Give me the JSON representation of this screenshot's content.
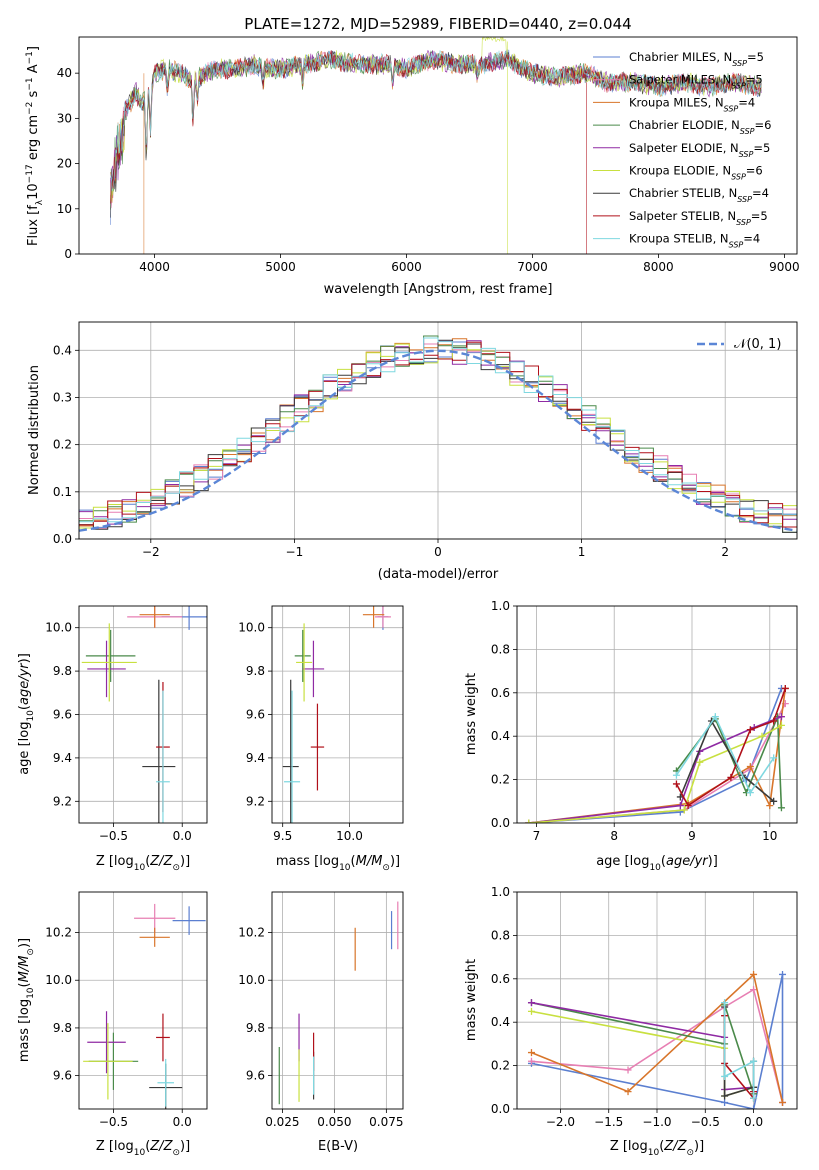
{
  "figure": {
    "title": "PLATE=1272, MJD=52989, FIBERID=0440, z=0.044"
  },
  "colors": {
    "chabrier_miles": "#5b7fd0",
    "salpeter_miles": "#e77fb3",
    "kroupa_miles": "#d8752a",
    "chabrier_elodie": "#4a8a4a",
    "salpeter_elodie": "#8f2aa3",
    "kroupa_elodie": "#c8e040",
    "chabrier_stelib": "#3a3a3a",
    "salpeter_stelib": "#b0101a",
    "kroupa_stelib": "#7fd8e0",
    "normal_curve": "#5b86d6",
    "grid": "#b0b0b0"
  },
  "chart_data": [
    {
      "id": "spectrum",
      "type": "line",
      "title": "PLATE=1272, MJD=52989, FIBERID=0440, z=0.044",
      "xlabel": "wavelength [Angstrom, rest frame]",
      "ylabel": "Flux [f_λ10^-17 erg cm^-2 s^-1 A^-1]",
      "xlim": [
        3400,
        9100
      ],
      "ylim": [
        0,
        48
      ],
      "xticks": [
        "4000",
        "5000",
        "6000",
        "7000",
        "8000",
        "9000"
      ],
      "yticks": [
        "0",
        "10",
        "20",
        "30",
        "40"
      ],
      "grid": false,
      "legend_position": "top-right",
      "x": [
        3650,
        3700,
        3750,
        3800,
        3850,
        3900,
        3950,
        4000,
        4100,
        4200,
        4300,
        4400,
        4500,
        4600,
        4700,
        4800,
        4900,
        5000,
        5200,
        5400,
        5600,
        5800,
        6000,
        6200,
        6400,
        6600,
        6800,
        7000,
        7200,
        7400,
        7600,
        7800,
        8000,
        8200,
        8400,
        8600,
        8800
      ],
      "y": [
        18,
        27,
        31,
        33,
        36,
        33,
        35,
        40,
        41,
        40,
        38,
        40,
        41,
        41,
        41,
        42,
        41,
        41,
        42,
        43,
        42,
        42,
        41,
        43,
        42,
        42,
        43,
        40,
        39,
        40,
        38,
        38,
        37,
        38,
        37,
        38,
        37
      ],
      "series": [
        {
          "name": "Chabrier MILES, N_SSP=5"
        },
        {
          "name": "Salpeter MILES, N_SSP=5"
        },
        {
          "name": "Kroupa MILES, N_SSP=4"
        },
        {
          "name": "Chabrier ELODIE, N_SSP=6"
        },
        {
          "name": "Salpeter ELODIE, N_SSP=5"
        },
        {
          "name": "Kroupa ELODIE, N_SSP=6"
        },
        {
          "name": "Chabrier STELIB, N_SSP=4"
        },
        {
          "name": "Salpeter STELIB, N_SSP=5"
        },
        {
          "name": "Kroupa STELIB, N_SSP=4"
        }
      ]
    },
    {
      "id": "residuals",
      "type": "line",
      "xlabel": "(data-model)/error",
      "ylabel": "Normed distribution",
      "xlim": [
        -2.5,
        2.5
      ],
      "ylim": [
        0,
        0.46
      ],
      "xticks": [
        "−2",
        "−1",
        "0",
        "1",
        "2"
      ],
      "yticks": [
        "0.0",
        "0.1",
        "0.2",
        "0.3",
        "0.4"
      ],
      "grid": true,
      "legend": "𝒩(0, 1)",
      "legend_position": "top-right",
      "bin_width": 0.1
    },
    {
      "id": "age-z",
      "type": "scatter",
      "xlabel": "Z [log10(Z/Z⊙)]",
      "ylabel": "age [log10(age/yr)]",
      "xlim": [
        -0.75,
        0.18
      ],
      "ylim": [
        9.1,
        10.1
      ],
      "xticks": [
        "−0.5",
        "0.0"
      ],
      "yticks": [
        "9.2",
        "9.4",
        "9.6",
        "9.8",
        "10.0"
      ],
      "grid": true,
      "points": [
        {
          "x": 0.05,
          "y": 10.05,
          "xerr": 0.2,
          "yerr": 0.06
        },
        {
          "x": -0.2,
          "y": 10.05,
          "xerr": 0.2,
          "yerr": 0.05
        },
        {
          "x": -0.2,
          "y": 10.06,
          "xerr": 0.11,
          "yerr": 0.06
        },
        {
          "x": -0.52,
          "y": 9.87,
          "xerr": 0.18,
          "yerr": 0.12
        },
        {
          "x": -0.55,
          "y": 9.81,
          "xerr": 0.14,
          "yerr": 0.13
        },
        {
          "x": -0.53,
          "y": 9.84,
          "xerr": 0.2,
          "yerr": 0.18
        },
        {
          "x": -0.17,
          "y": 9.36,
          "xerr": 0.12,
          "yerr": 0.4
        },
        {
          "x": -0.14,
          "y": 9.45,
          "xerr": 0.05,
          "yerr": 0.3
        },
        {
          "x": -0.14,
          "y": 9.29,
          "xerr": 0.05,
          "yerr": 0.42
        }
      ]
    },
    {
      "id": "age-mass",
      "type": "scatter",
      "xlabel": "mass [log10(M/M⊙)]",
      "ylabel": "",
      "xlim": [
        9.42,
        10.4
      ],
      "ylim": [
        9.1,
        10.1
      ],
      "xticks": [
        "9.5",
        "10.0"
      ],
      "yticks": [
        "9.2",
        "9.4",
        "9.6",
        "9.8",
        "10.0"
      ],
      "grid": true,
      "points": [
        {
          "x": 10.25,
          "y": 10.05,
          "xerr": 0.04,
          "yerr": 0.06
        },
        {
          "x": 10.25,
          "y": 10.05,
          "xerr": 0.06,
          "yerr": 0.05
        },
        {
          "x": 10.18,
          "y": 10.06,
          "xerr": 0.08,
          "yerr": 0.06
        },
        {
          "x": 9.65,
          "y": 9.87,
          "xerr": 0.06,
          "yerr": 0.12
        },
        {
          "x": 9.73,
          "y": 9.81,
          "xerr": 0.08,
          "yerr": 0.13
        },
        {
          "x": 9.66,
          "y": 9.84,
          "xerr": 0.06,
          "yerr": 0.18
        },
        {
          "x": 9.56,
          "y": 9.36,
          "xerr": 0.06,
          "yerr": 0.4
        },
        {
          "x": 9.76,
          "y": 9.45,
          "xerr": 0.05,
          "yerr": 0.2
        },
        {
          "x": 9.57,
          "y": 9.29,
          "xerr": 0.06,
          "yerr": 0.42
        }
      ]
    },
    {
      "id": "weight-age",
      "type": "line",
      "xlabel": "age [log10(age/yr)]",
      "ylabel": "mass weight",
      "xlim": [
        6.75,
        10.35
      ],
      "ylim": [
        0,
        1.0
      ],
      "xticks": [
        "7",
        "8",
        "9",
        "10"
      ],
      "yticks": [
        "0.0",
        "0.2",
        "0.4",
        "0.6",
        "0.8",
        "1.0"
      ],
      "grid": true,
      "series": [
        {
          "x": [
            6.9,
            8.85,
            9.7,
            10.15
          ],
          "y": [
            0.0,
            0.05,
            0.2,
            0.62
          ]
        },
        {
          "x": [
            6.9,
            8.9,
            9.75,
            10.2
          ],
          "y": [
            0.0,
            0.06,
            0.25,
            0.55
          ]
        },
        {
          "x": [
            6.9,
            8.95,
            9.75,
            10.0,
            10.2
          ],
          "y": [
            0.0,
            0.09,
            0.26,
            0.08,
            0.62
          ]
        },
        {
          "x": [
            8.8,
            9.3,
            9.7,
            10.1,
            10.15
          ],
          "y": [
            0.24,
            0.48,
            0.14,
            0.49,
            0.07
          ]
        },
        {
          "x": [
            6.9,
            8.85,
            9.1,
            9.8,
            10.15
          ],
          "y": [
            0.0,
            0.08,
            0.33,
            0.44,
            0.49
          ]
        },
        {
          "x": [
            6.9,
            8.9,
            9.1,
            9.9,
            10.15
          ],
          "y": [
            0.0,
            0.06,
            0.28,
            0.4,
            0.45
          ]
        },
        {
          "x": [
            8.85,
            9.25,
            9.65,
            10.05
          ],
          "y": [
            0.12,
            0.47,
            0.22,
            0.1
          ]
        },
        {
          "x": [
            8.8,
            8.95,
            9.5,
            9.75,
            10.05,
            10.2
          ],
          "y": [
            0.18,
            0.08,
            0.21,
            0.43,
            0.47,
            0.62
          ]
        },
        {
          "x": [
            8.8,
            9.3,
            9.75,
            10.05
          ],
          "y": [
            0.22,
            0.49,
            0.14,
            0.3
          ]
        }
      ]
    },
    {
      "id": "mass-z",
      "type": "scatter",
      "xlabel": "Z [log10(Z/Z⊙)]",
      "ylabel": "mass [log10(M/M⊙)]",
      "xlim": [
        -0.75,
        0.18
      ],
      "ylim": [
        9.46,
        10.37
      ],
      "xticks": [
        "−0.5",
        "0.0"
      ],
      "yticks": [
        "9.6",
        "9.8",
        "10.0",
        "10.2"
      ],
      "grid": true,
      "points": [
        {
          "x": 0.05,
          "y": 10.25,
          "xerr": 0.12,
          "yerr": 0.06
        },
        {
          "x": -0.2,
          "y": 10.26,
          "xerr": 0.15,
          "yerr": 0.06
        },
        {
          "x": -0.2,
          "y": 10.18,
          "xerr": 0.11,
          "yerr": 0.04
        },
        {
          "x": -0.5,
          "y": 9.66,
          "xerr": 0.18,
          "yerr": 0.12
        },
        {
          "x": -0.55,
          "y": 9.74,
          "xerr": 0.14,
          "yerr": 0.13
        },
        {
          "x": -0.54,
          "y": 9.66,
          "xerr": 0.18,
          "yerr": 0.16
        },
        {
          "x": -0.12,
          "y": 9.55,
          "xerr": 0.12,
          "yerr": 0.1
        },
        {
          "x": -0.14,
          "y": 9.76,
          "xerr": 0.05,
          "yerr": 0.1
        },
        {
          "x": -0.12,
          "y": 9.57,
          "xerr": 0.06,
          "yerr": 0.1
        }
      ]
    },
    {
      "id": "mass-ebv",
      "type": "scatter",
      "xlabel": "E(B-V)",
      "ylabel": "",
      "xlim": [
        0.02,
        0.083
      ],
      "ylim": [
        9.46,
        10.37
      ],
      "xticks": [
        "0.025",
        "0.050",
        "0.075"
      ],
      "yticks": [
        "9.6",
        "9.8",
        "10.0",
        "10.2"
      ],
      "grid": true,
      "points": [
        {
          "x": 0.0775,
          "y": 10.21,
          "yerr": 0.08
        },
        {
          "x": 0.0805,
          "y": 10.23,
          "yerr": 0.1
        },
        {
          "x": 0.06,
          "y": 10.13,
          "yerr": 0.09
        },
        {
          "x": 0.0235,
          "y": 9.6,
          "yerr": 0.12
        },
        {
          "x": 0.033,
          "y": 9.76,
          "yerr": 0.1
        },
        {
          "x": 0.033,
          "y": 9.6,
          "yerr": 0.11
        },
        {
          "x": 0.04,
          "y": 9.6,
          "yerr": 0.1
        },
        {
          "x": 0.04,
          "y": 9.7,
          "yerr": 0.08
        },
        {
          "x": 0.04,
          "y": 9.6,
          "yerr": 0.08
        }
      ]
    },
    {
      "id": "weight-z",
      "type": "line",
      "xlabel": "Z [log10(Z/Z⊙)]",
      "ylabel": "mass weight",
      "xlim": [
        -2.45,
        0.45
      ],
      "ylim": [
        0,
        1.0
      ],
      "xticks": [
        "−2.0",
        "−1.5",
        "−1.0",
        "−0.5",
        "0.0"
      ],
      "yticks": [
        "0.0",
        "0.2",
        "0.4",
        "0.6",
        "0.8",
        "1.0"
      ],
      "grid": true,
      "series": [
        {
          "x": [
            -2.3,
            -0.3,
            0.0,
            0.3,
            0.3
          ],
          "y": [
            0.21,
            0.03,
            0.0,
            0.62,
            0.03
          ]
        },
        {
          "x": [
            -2.3,
            -1.3,
            -0.3,
            0.0,
            0.3
          ],
          "y": [
            0.22,
            0.18,
            0.47,
            0.55,
            0.03
          ]
        },
        {
          "x": [
            -2.3,
            -1.3,
            0.0,
            0.3
          ],
          "y": [
            0.26,
            0.08,
            0.62,
            0.03
          ]
        },
        {
          "x": [
            -2.3,
            -0.3,
            -0.3,
            0.0
          ],
          "y": [
            0.49,
            0.3,
            0.48,
            0.07
          ]
        },
        {
          "x": [
            -2.3,
            -0.3,
            -0.3,
            0.0
          ],
          "y": [
            0.49,
            0.33,
            0.09,
            0.1
          ]
        },
        {
          "x": [
            -2.3,
            -0.3,
            -0.3,
            0.0
          ],
          "y": [
            0.45,
            0.28,
            0.06,
            0.1
          ]
        },
        {
          "x": [
            -0.3,
            -0.3,
            0.0,
            0.0
          ],
          "y": [
            0.47,
            0.06,
            0.1,
            0.22
          ]
        },
        {
          "x": [
            -0.3,
            -0.3,
            0.0,
            0.0
          ],
          "y": [
            0.43,
            0.21,
            0.05,
            0.08
          ]
        },
        {
          "x": [
            -0.3,
            -0.3,
            0.0,
            0.0
          ],
          "y": [
            0.49,
            0.15,
            0.22,
            0.05
          ]
        }
      ]
    }
  ]
}
